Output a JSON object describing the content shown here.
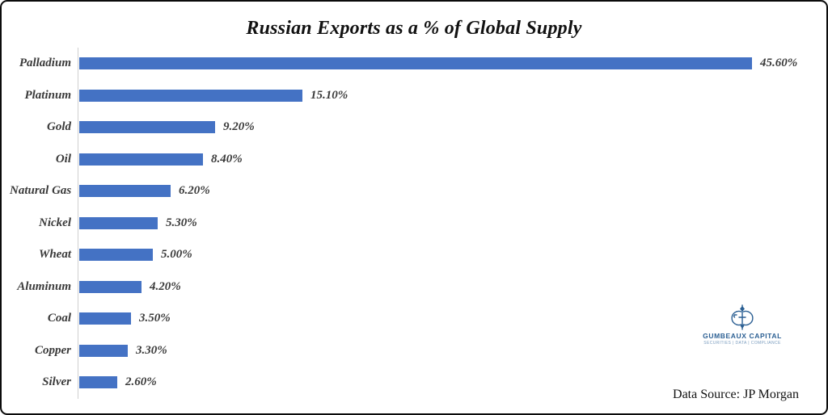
{
  "title": "Russian Exports as a % of Global Supply",
  "data_source": "Data Source: JP Morgan",
  "logo": {
    "name": "GUMBEAUX CAPITAL",
    "tagline": "SECURITIES | DATA | COMPLIANCE",
    "color": "#2b5f93"
  },
  "colors": {
    "bar": "#4472C4",
    "axis_line": "#cfcfcf",
    "label_text": "#3a3a3a",
    "frame_border": "#0b0b0b"
  },
  "chart_data": {
    "type": "bar",
    "orientation": "horizontal",
    "title": "Russian Exports as a % of Global Supply",
    "categories": [
      "Palladium",
      "Platinum",
      "Gold",
      "Oil",
      "Natural Gas",
      "Nickel",
      "Wheat",
      "Aluminum",
      "Coal",
      "Copper",
      "Silver"
    ],
    "values": [
      45.6,
      15.1,
      9.2,
      8.4,
      6.2,
      5.3,
      5.0,
      4.2,
      3.5,
      3.3,
      2.6
    ],
    "value_labels": [
      "45.60%",
      "15.10%",
      "9.20%",
      "8.40%",
      "6.20%",
      "5.30%",
      "5.00%",
      "4.20%",
      "3.50%",
      "3.30%",
      "2.60%"
    ],
    "unit": "%",
    "xlim": [
      0,
      50
    ],
    "data_labels": true,
    "grid": false,
    "legend": false,
    "sorted": "descending"
  }
}
